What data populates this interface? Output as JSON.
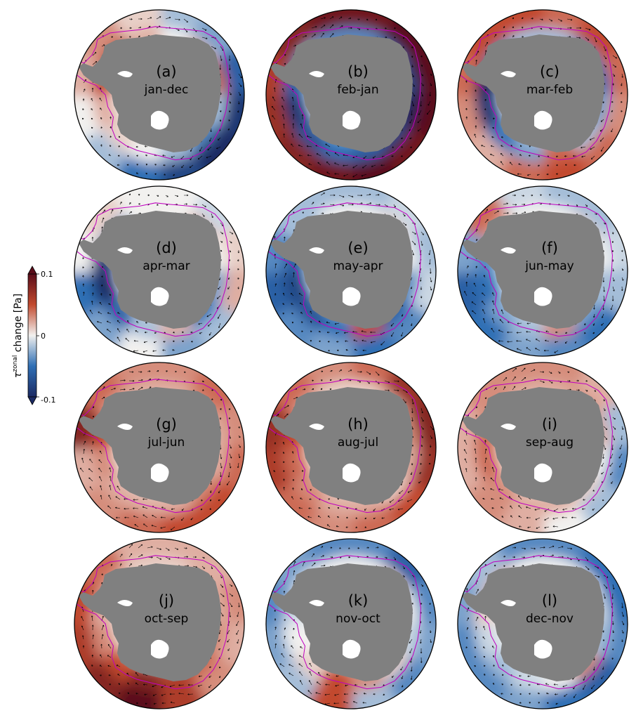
{
  "chart_data": {
    "type": "heatmap",
    "title": "",
    "projection": "south-polar-stereographic",
    "colorbar": {
      "label_symbol": "τ",
      "label_superscript": "zonal",
      "label_text": "change [Pa]",
      "ticks": [
        "0.1",
        "0",
        "-0.1"
      ],
      "range": [
        -0.1,
        0.1
      ],
      "extend": "both",
      "colormap": "balance",
      "colors": {
        "min": "#1b2a63",
        "low": "#2f6fb5",
        "mid": "#f2f1ef",
        "high": "#c24a2e",
        "max": "#5a0d1a"
      }
    },
    "overlays": {
      "land_color": "#808080",
      "ice_shelf_color": "#ffffff",
      "contour_color": "#c000c0",
      "vector_color": "#000000"
    },
    "panels": [
      {
        "label": "(a)",
        "period": "jan-dec",
        "ring": [
          -0.02,
          -0.03,
          -0.06,
          -0.09,
          -0.1,
          -0.08,
          -0.05,
          -0.02,
          0.0,
          0.02,
          0.03,
          0.01
        ],
        "coast": [
          0.0,
          0.02,
          0.04,
          -0.02,
          -0.04,
          -0.02,
          0.0,
          0.01,
          0.02,
          0.05,
          0.06,
          0.02
        ]
      },
      {
        "label": "(b)",
        "period": "feb-jan",
        "ring": [
          0.09,
          0.1,
          0.1,
          0.1,
          0.09,
          0.1,
          0.09,
          0.08,
          0.07,
          0.06,
          0.08,
          0.09
        ],
        "coast": [
          -0.04,
          -0.06,
          -0.08,
          -0.1,
          -0.08,
          -0.06,
          -0.05,
          -0.07,
          -0.09,
          -0.06,
          -0.03,
          -0.04
        ]
      },
      {
        "label": "(c)",
        "period": "mar-feb",
        "ring": [
          0.04,
          0.05,
          0.04,
          0.03,
          0.04,
          0.05,
          0.04,
          0.02,
          0.03,
          0.04,
          0.05,
          0.05
        ],
        "coast": [
          -0.02,
          -0.04,
          -0.05,
          -0.03,
          -0.02,
          0.04,
          -0.03,
          -0.05,
          -0.09,
          -0.1,
          -0.04,
          -0.02
        ]
      },
      {
        "label": "(d)",
        "period": "apr-mar",
        "ring": [
          0.0,
          -0.01,
          0.01,
          0.02,
          -0.02,
          -0.03,
          0.0,
          -0.03,
          -0.05,
          0.0,
          0.01,
          0.0
        ],
        "coast": [
          0.0,
          0.02,
          0.0,
          -0.03,
          -0.05,
          0.02,
          -0.02,
          -0.06,
          -0.1,
          -0.09,
          -0.03,
          0.0
        ]
      },
      {
        "label": "(e)",
        "period": "may-apr",
        "ring": [
          -0.02,
          -0.01,
          -0.02,
          -0.01,
          -0.04,
          -0.05,
          -0.03,
          -0.04,
          -0.06,
          -0.04,
          -0.02,
          -0.02
        ],
        "coast": [
          0.0,
          0.01,
          0.0,
          -0.04,
          -0.06,
          0.05,
          -0.05,
          -0.07,
          -0.08,
          -0.06,
          -0.02,
          0.0
        ]
      },
      {
        "label": "(f)",
        "period": "jun-may",
        "ring": [
          -0.02,
          -0.02,
          -0.01,
          -0.02,
          -0.05,
          -0.04,
          -0.03,
          -0.05,
          -0.06,
          -0.03,
          0.04,
          -0.01
        ],
        "coast": [
          0.0,
          0.01,
          0.0,
          -0.02,
          -0.03,
          0.03,
          -0.02,
          -0.03,
          -0.05,
          -0.04,
          0.02,
          0.0
        ]
      },
      {
        "label": "(g)",
        "period": "jul-jun",
        "ring": [
          0.03,
          0.04,
          0.03,
          0.04,
          0.05,
          0.05,
          0.04,
          0.03,
          0.02,
          0.08,
          0.04,
          0.03
        ],
        "coast": [
          0.02,
          0.03,
          0.02,
          0.02,
          0.03,
          0.02,
          0.02,
          0.02,
          0.03,
          0.05,
          0.02,
          0.02
        ]
      },
      {
        "label": "(h)",
        "period": "aug-jul",
        "ring": [
          0.04,
          0.07,
          0.08,
          0.07,
          0.05,
          0.04,
          0.03,
          0.04,
          0.06,
          0.07,
          0.04,
          0.03
        ],
        "coast": [
          0.01,
          0.02,
          0.03,
          0.02,
          0.01,
          0.02,
          0.02,
          0.03,
          0.04,
          0.05,
          0.02,
          0.01
        ]
      },
      {
        "label": "(i)",
        "period": "sep-aug",
        "ring": [
          0.03,
          0.02,
          -0.02,
          -0.04,
          -0.02,
          0.0,
          0.02,
          0.03,
          0.02,
          0.02,
          0.03,
          0.03
        ],
        "coast": [
          0.02,
          0.03,
          0.02,
          0.0,
          0.01,
          0.02,
          0.02,
          0.03,
          0.04,
          0.04,
          0.03,
          0.02
        ]
      },
      {
        "label": "(j)",
        "period": "oct-sep",
        "ring": [
          0.02,
          0.02,
          0.03,
          0.02,
          0.03,
          0.06,
          0.1,
          0.08,
          0.06,
          0.05,
          0.04,
          0.02
        ],
        "coast": [
          0.01,
          0.02,
          0.02,
          0.03,
          0.04,
          0.06,
          0.08,
          0.05,
          0.03,
          0.02,
          0.02,
          0.01
        ]
      },
      {
        "label": "(k)",
        "period": "nov-oct",
        "ring": [
          -0.04,
          -0.06,
          -0.04,
          -0.03,
          -0.04,
          -0.02,
          0.05,
          -0.02,
          -0.03,
          -0.04,
          -0.03,
          -0.04
        ],
        "coast": [
          0.0,
          0.01,
          0.0,
          -0.01,
          0.01,
          0.03,
          0.05,
          0.01,
          0.0,
          -0.01,
          0.0,
          0.0
        ]
      },
      {
        "label": "(l)",
        "period": "dec-nov",
        "ring": [
          -0.04,
          -0.05,
          -0.05,
          -0.04,
          -0.06,
          -0.05,
          -0.03,
          -0.04,
          -0.04,
          -0.03,
          -0.02,
          -0.04
        ],
        "coast": [
          0.0,
          0.0,
          -0.01,
          -0.02,
          0.03,
          0.0,
          -0.01,
          -0.02,
          -0.01,
          0.01,
          0.02,
          0.0
        ]
      }
    ]
  }
}
